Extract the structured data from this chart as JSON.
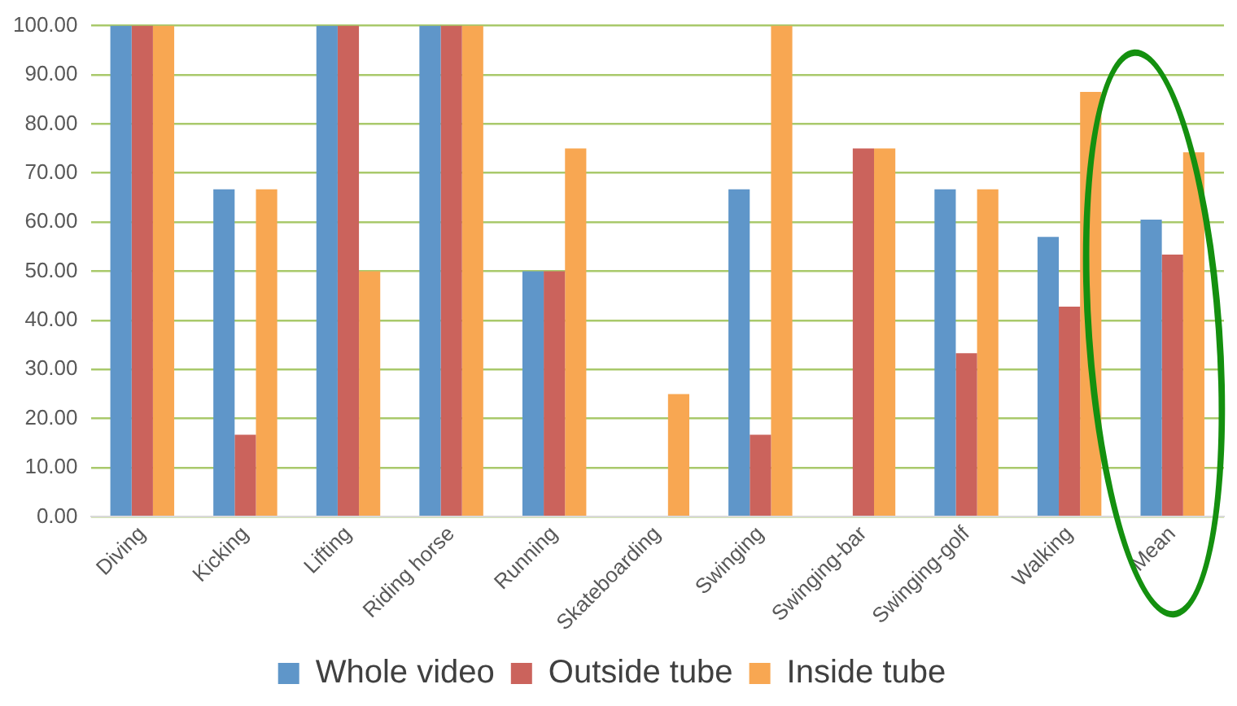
{
  "chart_data": {
    "type": "bar",
    "categories": [
      "Diving",
      "Kicking",
      "Lifting",
      "Riding horse",
      "Running",
      "Skateboarding",
      "Swinging",
      "Swinging-bar",
      "Swinging-golf",
      "Walking",
      "Mean"
    ],
    "series": [
      {
        "name": "Whole video",
        "color": "#5f96c9",
        "values": [
          100,
          66.7,
          100,
          100,
          50,
          0,
          66.7,
          0,
          66.7,
          57.0,
          60.5
        ]
      },
      {
        "name": "Outside tube",
        "color": "#cb635c",
        "values": [
          100,
          16.7,
          100,
          100,
          50,
          0,
          16.7,
          75,
          33.3,
          42.8,
          53.4
        ]
      },
      {
        "name": "Inside tube",
        "color": "#f8a752",
        "values": [
          100,
          66.7,
          50,
          100,
          75,
          25,
          100,
          75,
          66.7,
          86.5,
          74.2
        ]
      }
    ],
    "ylim": [
      0,
      100
    ],
    "yticks": [
      {
        "value": 0,
        "label": "0.00"
      },
      {
        "value": 10,
        "label": "10.00"
      },
      {
        "value": 20,
        "label": "20.00"
      },
      {
        "value": 30,
        "label": "30.00"
      },
      {
        "value": 40,
        "label": "40.00"
      },
      {
        "value": 50,
        "label": "50.00"
      },
      {
        "value": 60,
        "label": "60.00"
      },
      {
        "value": 70,
        "label": "70.00"
      },
      {
        "value": 80,
        "label": "80.00"
      },
      {
        "value": 90,
        "label": "90.00"
      },
      {
        "value": 100,
        "label": "100.00"
      }
    ],
    "grid": "y",
    "legend": "bottom"
  }
}
